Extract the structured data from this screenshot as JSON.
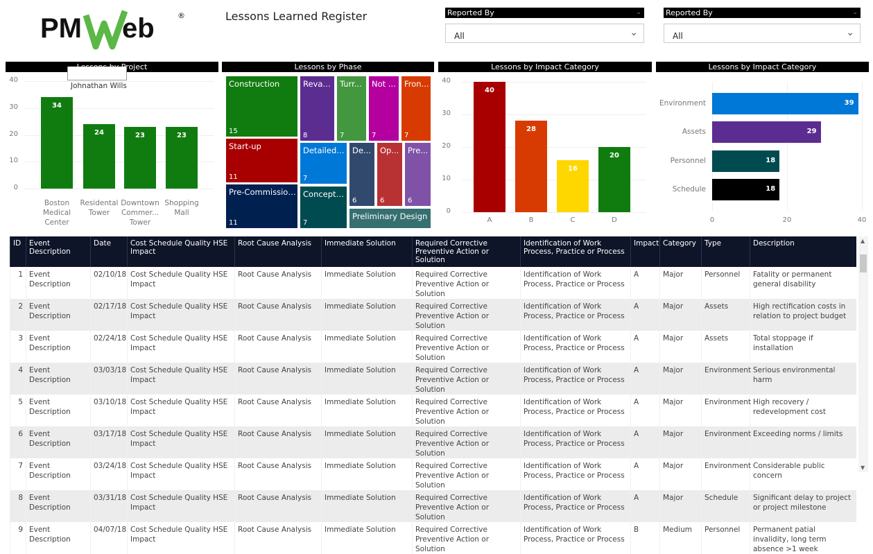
{
  "brand": {
    "logo_text_left": "PM",
    "logo_text_right": "eb",
    "logo_mark": "W",
    "registered": "®"
  },
  "header": {
    "title": "Lessons Learned Register"
  },
  "filters": [
    {
      "label": "Reported By",
      "value": "All"
    },
    {
      "label": "Reported By",
      "value": "All"
    }
  ],
  "tooltip": {
    "value": "Johnathan Wills"
  },
  "colors": {
    "green": "#107c10",
    "header": "#0e1528"
  },
  "chart_data": [
    {
      "type": "bar",
      "title": "Lessons by Project",
      "categories": [
        [
          "Boston",
          "Medical",
          "Center"
        ],
        [
          "Residental",
          "Tower"
        ],
        [
          "Downtown",
          "Commer...",
          "Tower"
        ],
        [
          "Shopping",
          "Mall"
        ]
      ],
      "values": [
        34,
        24,
        23,
        23
      ],
      "ylim": [
        0,
        40
      ],
      "yticks": [
        "0",
        "10",
        "20",
        "30",
        "40"
      ],
      "color": "#107c10"
    },
    {
      "type": "treemap",
      "title": "Lessons by Phase",
      "items": [
        {
          "label": "Construction",
          "value": 15,
          "color": "#107c10"
        },
        {
          "label": "Revamp",
          "value": 8,
          "color": "#5c2d91"
        },
        {
          "label": "Turr...",
          "value": 7,
          "color": "#43973f"
        },
        {
          "label": "Not ...",
          "value": 7,
          "color": "#b4009e"
        },
        {
          "label": "Fron...",
          "value": 7,
          "color": "#d83b01"
        },
        {
          "label": "Start-up",
          "value": 11,
          "color": "#a80000"
        },
        {
          "label": "Pre-Commission...",
          "value": 11,
          "color": "#002050"
        },
        {
          "label": "Detailed ...",
          "value": 7,
          "color": "#0078d7"
        },
        {
          "label": "Conceptu...",
          "value": 7,
          "color": "#004b50"
        },
        {
          "label": "De...",
          "value": 6,
          "color": "#32496e"
        },
        {
          "label": "Op...",
          "value": 6,
          "color": "#b83234"
        },
        {
          "label": "Pre...",
          "value": 6,
          "color": "#7f52a7"
        },
        {
          "label": "Preliminary Design",
          "value": "",
          "color": "#366f70"
        }
      ]
    },
    {
      "type": "bar",
      "title": "Lessons by Impact Category",
      "categories": [
        "A",
        "B",
        "C",
        "D"
      ],
      "values": [
        40,
        28,
        16,
        20
      ],
      "colors": [
        "#a80000",
        "#d83b01",
        "#ffd700",
        "#107c10"
      ],
      "ylim": [
        0,
        40
      ],
      "yticks": [
        "0",
        "10",
        "20",
        "30",
        "40"
      ]
    },
    {
      "type": "hbar",
      "title": "Lessons by Impact Category",
      "categories": [
        "Environment",
        "Assets",
        "Personnel",
        "Schedule"
      ],
      "values": [
        39,
        29,
        18,
        18
      ],
      "colors": [
        "#0078d7",
        "#5c2d91",
        "#004b50",
        "#000000"
      ],
      "xlim": [
        0,
        40
      ],
      "xticks": [
        "0",
        "20",
        "40"
      ]
    }
  ],
  "table": {
    "columns": [
      "ID",
      "Event Description",
      "Date",
      "Cost Schedule Quality HSE Impact",
      "Root Cause Analysis",
      "Immediate Solution",
      "Required Corrective Preventive Action or Solution",
      "Identification of Work Process, Practice or Process",
      "Impact",
      "Category",
      "Type",
      "Description"
    ],
    "rows": [
      [
        "1",
        "Event Description",
        "02/10/18",
        "Cost Schedule Quality HSE Impact",
        "Root Cause Analysis",
        "Immediate Solution",
        "Required Corrective Preventive Action or Solution",
        "Identification of Work Process, Practice or Process",
        "A",
        "Major",
        "Personnel",
        "Fatality or permanent general disability"
      ],
      [
        "2",
        "Event Description",
        "02/17/18",
        "Cost Schedule Quality HSE Impact",
        "Root Cause Analysis",
        "Immediate Solution",
        "Required Corrective Preventive Action or Solution",
        "Identification of Work Process, Practice or Process",
        "A",
        "Major",
        "Assets",
        "High rectification costs in relation to project budget"
      ],
      [
        "3",
        "Event Description",
        "02/24/18",
        "Cost Schedule Quality HSE Impact",
        "Root Cause Analysis",
        "Immediate Solution",
        "Required Corrective Preventive Action or Solution",
        "Identification of Work Process, Practice or Process",
        "A",
        "Major",
        "Assets",
        "Total stoppage if installation"
      ],
      [
        "4",
        "Event Description",
        "03/03/18",
        "Cost Schedule Quality HSE Impact",
        "Root Cause Analysis",
        "Immediate Solution",
        "Required Corrective Preventive Action or Solution",
        "Identification of Work Process, Practice or Process",
        "A",
        "Major",
        "Environment",
        "Serious environmental harm"
      ],
      [
        "5",
        "Event Description",
        "03/10/18",
        "Cost Schedule Quality HSE Impact",
        "Root Cause Analysis",
        "Immediate Solution",
        "Required Corrective Preventive Action or Solution",
        "Identification of Work Process, Practice or Process",
        "A",
        "Major",
        "Environment",
        "High recovery / redevelopment cost"
      ],
      [
        "6",
        "Event Description",
        "03/17/18",
        "Cost Schedule Quality HSE Impact",
        "Root Cause Analysis",
        "Immediate Solution",
        "Required Corrective Preventive Action or Solution",
        "Identification of Work Process, Practice or Process",
        "A",
        "Major",
        "Environment",
        "Exceeding norms / limits"
      ],
      [
        "7",
        "Event Description",
        "03/24/18",
        "Cost Schedule Quality HSE Impact",
        "Root Cause Analysis",
        "Immediate Solution",
        "Required Corrective Preventive Action or Solution",
        "Identification of Work Process, Practice or Process",
        "A",
        "Major",
        "Environment",
        "Considerable public concern"
      ],
      [
        "8",
        "Event Description",
        "03/31/18",
        "Cost Schedule Quality HSE Impact",
        "Root Cause Analysis",
        "Immediate Solution",
        "Required Corrective Preventive Action or Solution",
        "Identification of Work Process, Practice or Process",
        "A",
        "Major",
        "Schedule",
        "Significant delay to project or project milestone"
      ],
      [
        "9",
        "Event Description",
        "04/07/18",
        "Cost Schedule Quality HSE Impact",
        "Root Cause Analysis",
        "Immediate Solution",
        "Required Corrective Preventive Action or Solution",
        "Identification of Work Process, Practice or Process",
        "B",
        "Medium",
        "Personnel",
        "Permanent patial invalidity, long term absence >1 week"
      ]
    ]
  }
}
